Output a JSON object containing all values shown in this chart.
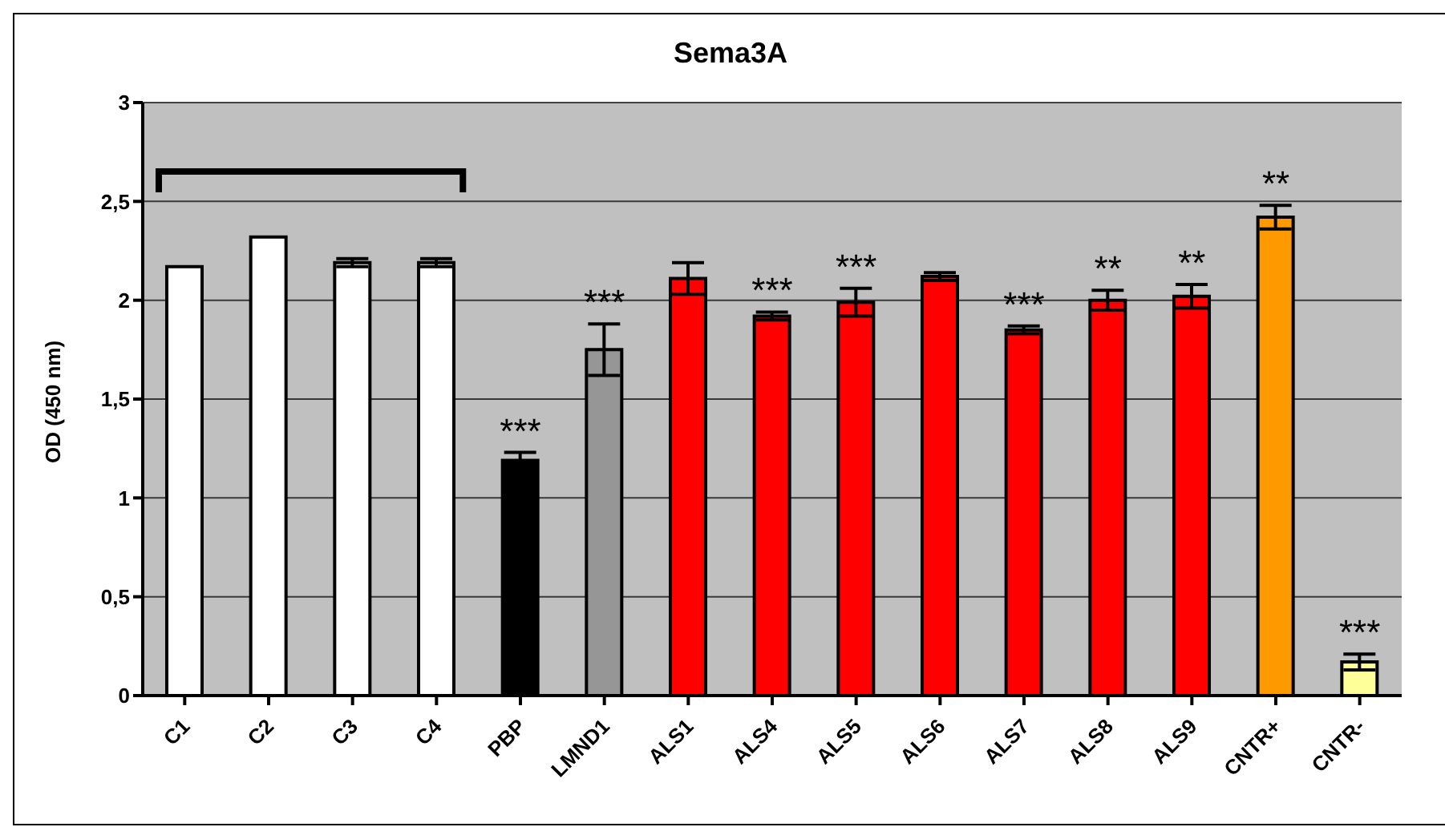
{
  "chart_data": {
    "type": "bar",
    "title": "Sema3A",
    "ylabel": "OD (450 nm)",
    "categories": [
      "C1",
      "C2",
      "C3",
      "C4",
      "PBP",
      "LMND1",
      "ALS1",
      "ALS4",
      "ALS5",
      "ALS6",
      "ALS7",
      "ALS8",
      "ALS9",
      "CNTR+",
      "CNTR-"
    ],
    "values": [
      2.17,
      2.32,
      2.19,
      2.19,
      1.19,
      1.75,
      2.11,
      1.92,
      1.99,
      2.12,
      1.85,
      2.0,
      2.02,
      2.42,
      0.17
    ],
    "errors": [
      null,
      null,
      0.02,
      0.02,
      0.04,
      0.13,
      0.08,
      0.02,
      0.07,
      0.02,
      0.02,
      0.05,
      0.06,
      0.06,
      0.04
    ],
    "colors": [
      "#ffffff",
      "#ffffff",
      "#ffffff",
      "#ffffff",
      "#000000",
      "#969696",
      "#ff0000",
      "#ff0000",
      "#ff0000",
      "#ff0000",
      "#ff0000",
      "#ff0000",
      "#ff0000",
      "#ff9900",
      "#ffff99"
    ],
    "ylim": [
      0,
      3
    ],
    "yticks": [
      {
        "value": 0,
        "label": "0"
      },
      {
        "value": 0.5,
        "label": "0,5"
      },
      {
        "value": 1,
        "label": "1"
      },
      {
        "value": 1.5,
        "label": "1,5"
      },
      {
        "value": 2,
        "label": "2"
      },
      {
        "value": 2.5,
        "label": "2,5"
      },
      {
        "value": 3,
        "label": "3"
      }
    ],
    "grid": "y",
    "legend": false,
    "annotations": [
      {
        "text": "***",
        "x": "PBP",
        "y": 1.19
      },
      {
        "text": "***",
        "x": "LMND1",
        "y": 1.75
      },
      {
        "text": "***",
        "x": "ALS4",
        "y": 1.92
      },
      {
        "text": "***",
        "x": "ALS5",
        "y": 1.99
      },
      {
        "text": "***",
        "x": "ALS7",
        "y": 1.85
      },
      {
        "text": "**",
        "x": "ALS8",
        "y": 2.0
      },
      {
        "text": "**",
        "x": "ALS9",
        "y": 2.02
      },
      {
        "text": "**",
        "x": "CNTR+",
        "y": 2.42
      },
      {
        "text": "***",
        "x": "CNTR-",
        "y": 0.17
      }
    ]
  }
}
